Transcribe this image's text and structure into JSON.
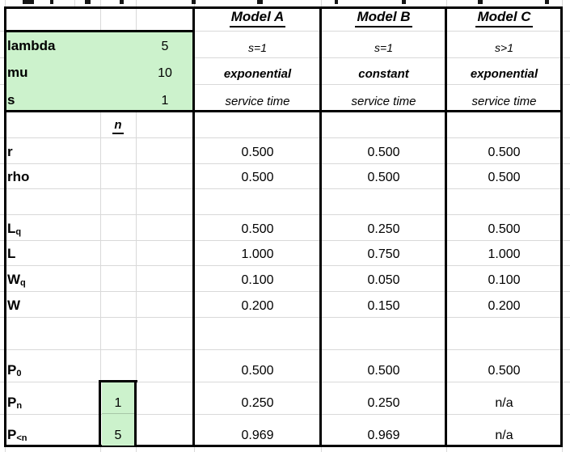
{
  "colors": {
    "input_green": "#ccf2cc",
    "gridline": "#d9d9d9",
    "border": "#000000"
  },
  "params": [
    {
      "label": "lambda",
      "value": "5"
    },
    {
      "label": "mu",
      "value": "10"
    },
    {
      "label": "s",
      "value": "1"
    }
  ],
  "n_header": "n",
  "models": [
    {
      "name": "Model A",
      "s_label": "s=1",
      "dist": "exponential",
      "svc": "service time"
    },
    {
      "name": "Model B",
      "s_label": "s=1",
      "dist": "constant",
      "svc": "service time"
    },
    {
      "name": "Model C",
      "s_label": "s>1",
      "dist": "exponential",
      "svc": "service time"
    }
  ],
  "rows": [
    {
      "label": "r",
      "sub": "",
      "n_value": "",
      "values": [
        "0.500",
        "0.500",
        "0.500"
      ]
    },
    {
      "label": "rho",
      "sub": "",
      "n_value": "",
      "values": [
        "0.500",
        "0.500",
        "0.500"
      ]
    },
    {
      "label": "L",
      "sub": "q",
      "n_value": "",
      "values": [
        "0.500",
        "0.250",
        "0.500"
      ]
    },
    {
      "label": "L",
      "sub": "",
      "n_value": "",
      "values": [
        "1.000",
        "0.750",
        "1.000"
      ]
    },
    {
      "label": "W",
      "sub": "q",
      "n_value": "",
      "values": [
        "0.100",
        "0.050",
        "0.100"
      ]
    },
    {
      "label": "W",
      "sub": "",
      "n_value": "",
      "values": [
        "0.200",
        "0.150",
        "0.200"
      ]
    },
    {
      "label": "P",
      "sub": "0",
      "n_value": "",
      "values": [
        "0.500",
        "0.500",
        "0.500"
      ]
    },
    {
      "label": "P",
      "sub": "n",
      "n_value": "1",
      "values": [
        "0.250",
        "0.250",
        "n/a"
      ]
    },
    {
      "label": "P",
      "sub": "<n",
      "n_value": "5",
      "values": [
        "0.969",
        "0.969",
        "n/a"
      ]
    }
  ]
}
